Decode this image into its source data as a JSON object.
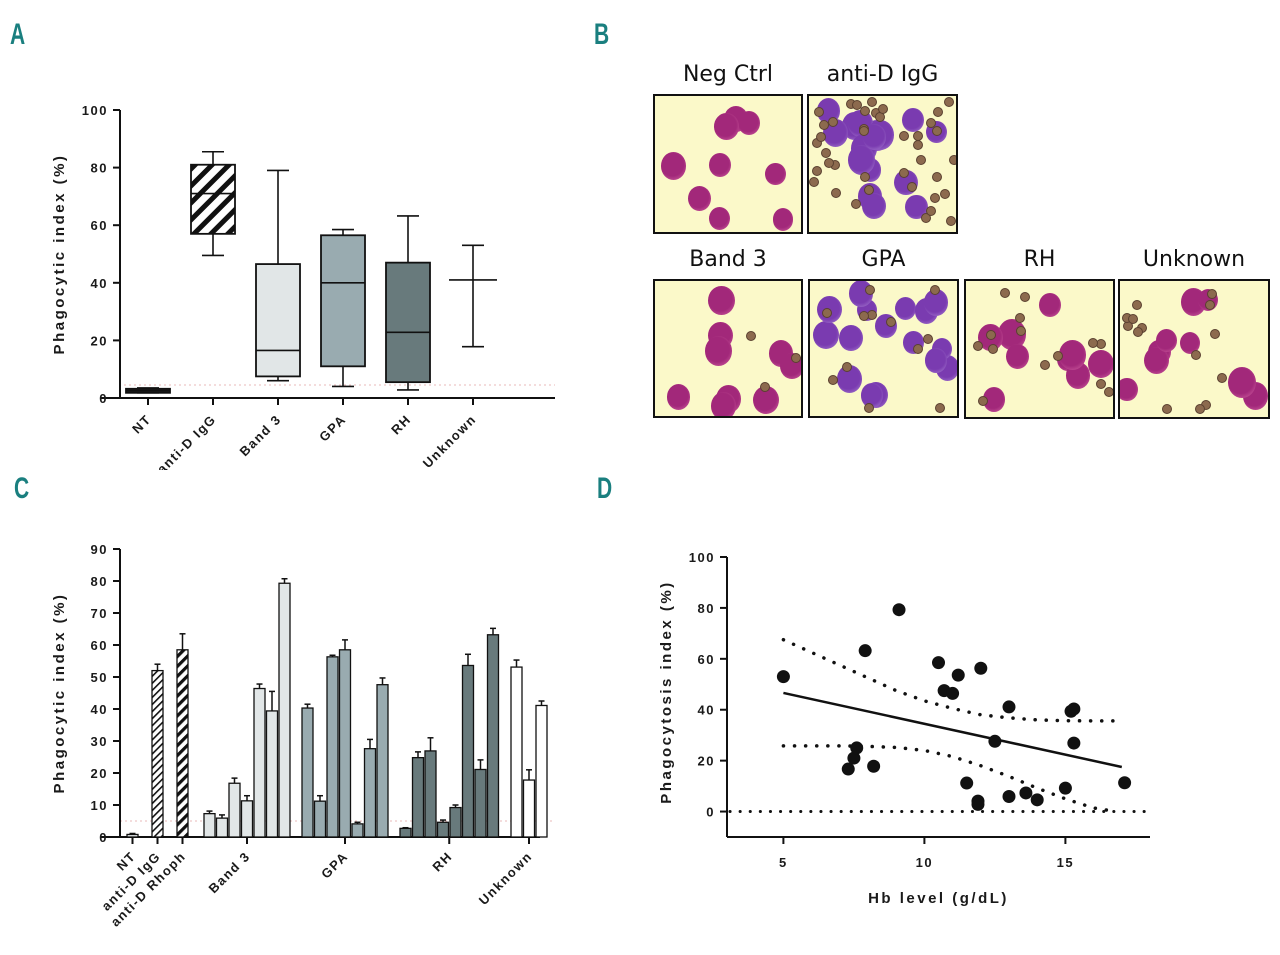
{
  "panels": {
    "a": {
      "letter": "A"
    },
    "b": {
      "letter": "B"
    },
    "c": {
      "letter": "C"
    },
    "d": {
      "letter": "D"
    }
  },
  "colors": {
    "panel_letter": "#1a7f7f",
    "band3": "#e1e6e7",
    "gpa": "#99abb0",
    "rh": "#687a7c",
    "unknown": "#ffffff",
    "reference_line": "#e9b8b8",
    "microscopy_bg": "#fbf9c9"
  },
  "microscopy": {
    "images": [
      {
        "label": "Neg Ctrl",
        "cells": "magenta",
        "rbc_attached": 0
      },
      {
        "label": "anti-D IgG",
        "cells": "purple",
        "rbc_attached": 40
      },
      {
        "label": "Band 3",
        "cells": "magenta",
        "rbc_attached": 3
      },
      {
        "label": "GPA",
        "cells": "purple",
        "rbc_attached": 12
      },
      {
        "label": "RH",
        "cells": "magenta",
        "rbc_attached": 14
      },
      {
        "label": "Unknown",
        "cells": "magenta",
        "rbc_attached": 14
      }
    ]
  },
  "chart_data": [
    {
      "id": "A",
      "type": "boxplot",
      "title": "",
      "xlabel": "",
      "ylabel": "Phagocytic index (%)",
      "ylim": [
        0,
        100
      ],
      "yticks": [
        0,
        20,
        40,
        60,
        80,
        100
      ],
      "reference_line": 4.5,
      "categories": [
        "NT",
        "anti-D IgG",
        "Band 3",
        "GPA",
        "RH",
        "Unknown"
      ],
      "boxes": [
        {
          "name": "NT",
          "min": 1.8,
          "q1": 1.8,
          "median": 2.5,
          "q3": 3.2,
          "max": 3.5,
          "fill": "pattern-dash"
        },
        {
          "name": "anti-D IgG",
          "min": 49.5,
          "q1": 57,
          "median": 71,
          "q3": 81,
          "max": 85.5,
          "fill": "pattern-hatch"
        },
        {
          "name": "Band 3",
          "min": 6,
          "q1": 7.5,
          "median": 16.5,
          "q3": 46.5,
          "max": 79,
          "fill": "band3"
        },
        {
          "name": "GPA",
          "min": 4,
          "q1": 11,
          "median": 40,
          "q3": 56.5,
          "max": 58.5,
          "fill": "gpa"
        },
        {
          "name": "RH",
          "min": 2.8,
          "q1": 5.5,
          "median": 22.8,
          "q3": 47,
          "max": 63.2,
          "fill": "rh"
        },
        {
          "name": "Unknown",
          "min": 17.8,
          "q1": null,
          "median": 41,
          "q3": null,
          "max": 53,
          "fill": "none"
        }
      ]
    },
    {
      "id": "C",
      "type": "bar",
      "title": "",
      "xlabel": "",
      "ylabel": "Phagocytic index (%)",
      "ylim": [
        0,
        90
      ],
      "yticks": [
        0,
        10,
        20,
        30,
        40,
        50,
        60,
        70,
        80,
        90
      ],
      "reference_line": 5,
      "group_labels": [
        "NT",
        "anti-D IgG",
        "anti-D Rhoph",
        "Band 3",
        "GPA",
        "RH",
        "Unknown"
      ],
      "groups": [
        {
          "name": "NT",
          "fill": "band3",
          "values": [
            0.8
          ],
          "errors": [
            0.3
          ]
        },
        {
          "name": "anti-D IgG",
          "fill": "hatch-thin",
          "values": [
            52
          ],
          "errors": [
            2
          ]
        },
        {
          "name": "anti-D Rhoph",
          "fill": "hatch-thick",
          "values": [
            58.5
          ],
          "errors": [
            5
          ]
        },
        {
          "name": "Band 3",
          "fill": "band3",
          "values": [
            7.3,
            5.9,
            16.8,
            11.3,
            46.4,
            39.4,
            79.3
          ],
          "errors": [
            0.8,
            1,
            1.6,
            1.6,
            1.4,
            6.1,
            1.4
          ]
        },
        {
          "name": "GPA",
          "fill": "gpa",
          "values": [
            40.3,
            11.2,
            56.3,
            58.5,
            4.1,
            27.6,
            47.6
          ],
          "errors": [
            1.2,
            1.7,
            0.5,
            3.1,
            0.5,
            2.9,
            2.1
          ]
        },
        {
          "name": "RH",
          "fill": "rh",
          "values": [
            2.7,
            24.8,
            26.9,
            4.6,
            9.2,
            53.6,
            21.1,
            63.2
          ],
          "errors": [
            0.2,
            1.8,
            4.1,
            0.7,
            0.8,
            3.5,
            3,
            2
          ]
        },
        {
          "name": "Unknown",
          "fill": "unknown",
          "values": [
            53.1,
            17.8,
            41.1
          ],
          "errors": [
            2.2,
            3.2,
            1.4
          ]
        }
      ]
    },
    {
      "id": "D",
      "type": "scatter",
      "title": "",
      "xlabel": "Hb level (g/dL)",
      "ylabel": "Phagocytosis index (%)",
      "xlim": [
        3,
        18
      ],
      "ylim": [
        -10,
        100
      ],
      "xticks": [
        5,
        10,
        15
      ],
      "yticks": [
        0,
        20,
        40,
        60,
        80,
        100
      ],
      "points": [
        {
          "x": 5.0,
          "y": 53.0
        },
        {
          "x": 7.3,
          "y": 16.7
        },
        {
          "x": 7.5,
          "y": 21.0
        },
        {
          "x": 7.6,
          "y": 25.0
        },
        {
          "x": 7.9,
          "y": 63.2
        },
        {
          "x": 8.2,
          "y": 17.8
        },
        {
          "x": 9.1,
          "y": 79.3
        },
        {
          "x": 10.5,
          "y": 58.5
        },
        {
          "x": 10.7,
          "y": 47.5
        },
        {
          "x": 11.0,
          "y": 46.4
        },
        {
          "x": 11.2,
          "y": 53.6
        },
        {
          "x": 11.5,
          "y": 11.2
        },
        {
          "x": 11.9,
          "y": 4.1
        },
        {
          "x": 11.9,
          "y": 2.8
        },
        {
          "x": 12.0,
          "y": 56.3
        },
        {
          "x": 12.5,
          "y": 27.6
        },
        {
          "x": 13.0,
          "y": 41.1
        },
        {
          "x": 13.0,
          "y": 5.9
        },
        {
          "x": 13.6,
          "y": 7.3
        },
        {
          "x": 14.0,
          "y": 4.6
        },
        {
          "x": 15.0,
          "y": 9.2
        },
        {
          "x": 15.2,
          "y": 39.4
        },
        {
          "x": 15.3,
          "y": 40.3
        },
        {
          "x": 15.3,
          "y": 26.9
        },
        {
          "x": 17.1,
          "y": 11.3
        }
      ],
      "regression": {
        "x0": 5.0,
        "y0": 46.6,
        "x1": 17.0,
        "y1": 17.5
      },
      "ci_upper": [
        [
          5.0,
          67.5
        ],
        [
          6.0,
          62.5
        ],
        [
          7.0,
          57.5
        ],
        [
          8.0,
          52.5
        ],
        [
          9.0,
          47.5
        ],
        [
          10.0,
          43.5
        ],
        [
          11.0,
          40.5
        ],
        [
          12.0,
          38.0
        ],
        [
          13.0,
          36.8
        ],
        [
          14.0,
          36.0
        ],
        [
          15.0,
          35.7
        ],
        [
          16.0,
          35.6
        ],
        [
          16.9,
          35.6
        ]
      ],
      "ci_lower": [
        [
          5.0,
          25.8
        ],
        [
          6.0,
          25.8
        ],
        [
          7.0,
          25.8
        ],
        [
          8.0,
          25.6
        ],
        [
          9.0,
          25.2
        ],
        [
          10.0,
          24.0
        ],
        [
          11.0,
          21.6
        ],
        [
          12.0,
          18.0
        ],
        [
          13.0,
          13.8
        ],
        [
          14.0,
          9.2
        ],
        [
          15.0,
          5.0
        ],
        [
          16.0,
          1.4
        ],
        [
          16.8,
          0
        ]
      ],
      "zero_line": 0
    }
  ]
}
